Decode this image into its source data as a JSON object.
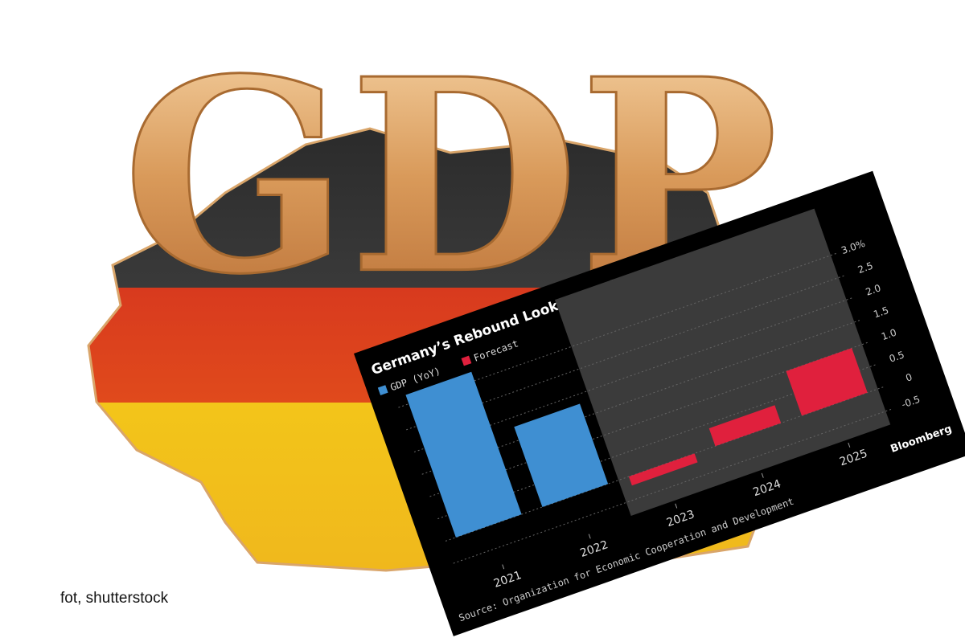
{
  "background_text": "GDP",
  "caption": "fot, shutterstock",
  "chart_data": {
    "type": "bar",
    "title": "Germany’s Rebound Looks Muted",
    "categories": [
      "2021",
      "2022",
      "2023",
      "2024",
      "2025"
    ],
    "series": [
      {
        "name": "GDP (YoY)",
        "color": "#3f8fd2",
        "values": [
          3.2,
          1.8,
          null,
          null,
          null
        ]
      },
      {
        "name": "Forecast",
        "color": "#e0203d",
        "values": [
          null,
          null,
          -0.2,
          0.4,
          1.0
        ]
      }
    ],
    "ylim": [
      -0.8,
      3.2
    ],
    "yticks": [
      -0.5,
      0,
      0.5,
      {
        "value": 1.0,
        "label": "1.0"
      },
      1.5,
      {
        "value": 2.0,
        "label": "2.0"
      },
      2.5,
      {
        "value": 3.0,
        "label": "3.0%"
      }
    ],
    "grid": true,
    "source": "Source: Organization for Economic Cooperation and Development",
    "brand": "Bloomberg"
  }
}
